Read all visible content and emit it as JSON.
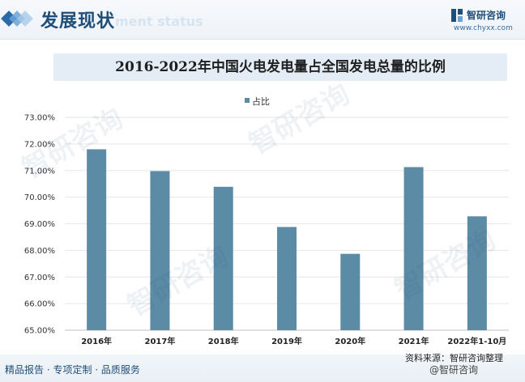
{
  "header": {
    "title": "发展现状",
    "title_en": "ment status",
    "logo_name": "智研咨询",
    "logo_url": "www.chyxx.com"
  },
  "chart_data": {
    "type": "bar",
    "title": "2016-2022年中国火电发电量占全国发电总量的比例",
    "categories": [
      "2016年",
      "2017年",
      "2018年",
      "2019年",
      "2020年",
      "2021年",
      "2022年1-10月"
    ],
    "series": [
      {
        "name": "占比",
        "values": [
          71.8,
          70.98,
          70.39,
          68.88,
          67.87,
          71.13,
          69.28
        ]
      }
    ],
    "ylim": [
      65,
      73
    ],
    "yticks": [
      "65.00%",
      "66.00%",
      "67.00%",
      "68.00%",
      "69.00%",
      "70.00%",
      "71.00%",
      "72.00%",
      "73.00%"
    ],
    "bar_color": "#5b8ba5",
    "grid": true,
    "legend_position": "top-center"
  },
  "footer": {
    "tagline": "精品报告 · 专项定制 · 品质服务",
    "source": "资料来源：智研咨询整理",
    "brand": "@智研咨询"
  }
}
